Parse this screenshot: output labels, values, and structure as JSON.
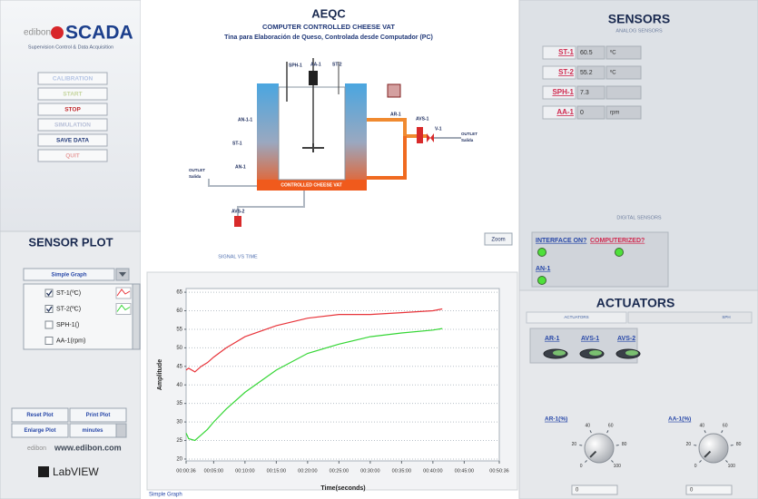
{
  "header": {
    "logo": "edibon",
    "product": "SCADA",
    "tagline": "Supervision Control & Data Acquisition"
  },
  "controls": {
    "buttons": [
      {
        "label": "CALIBRATION",
        "color": "#b4c4e4"
      },
      {
        "label": "START",
        "color": "#c4d49c"
      },
      {
        "label": "STOP",
        "color": "#c0282c"
      },
      {
        "label": "SIMULATION",
        "color": "#b8c0d8"
      },
      {
        "label": "SAVE DATA",
        "color": "#203878"
      },
      {
        "label": "QUIT",
        "color": "#e8a4a4"
      }
    ]
  },
  "process": {
    "code": "AEQC",
    "title": "COMPUTER CONTROLLED CHEESE VAT",
    "subtitle": "Tina para Elaboración de  Queso, Controlada desde Computador (PC)",
    "labels": {
      "sph": "SPH-1",
      "aa": "AA-1",
      "st2": "ST-2",
      "an11": "AN-1-1",
      "st1": "ST-1",
      "an1": "AN-1",
      "ar": "AR-1",
      "avs1": "AVS-1",
      "v1": "V-1",
      "outlet": "OUTLET",
      "outlet_es": "Salida",
      "avs2": "AVS-2",
      "vat": "CONTROLLED CHEESE VAT"
    },
    "zoom": "Zoom"
  },
  "sensors": {
    "title": "SENSORS",
    "analog_title": "ANALOG SENSORS",
    "analog": [
      {
        "tag": "ST-1",
        "value": 60.5,
        "unit": "ºC"
      },
      {
        "tag": "ST-2",
        "value": 55.2,
        "unit": "ºC"
      },
      {
        "tag": "SPH-1",
        "value": 7.3
      },
      {
        "tag": "AA-1",
        "value": 0,
        "unit": "rpm"
      }
    ],
    "digital_title": "DIGITAL SENSORS",
    "digital": [
      {
        "tag": "INTERFACE ON?",
        "on": true
      },
      {
        "tag": "COMPUTERIZED?",
        "on": true
      },
      {
        "tag": "AN-1",
        "on": true
      }
    ]
  },
  "actuators": {
    "title": "ACTUATORS",
    "tabs": [
      "ACTUATORS",
      "SPH"
    ],
    "toggles": [
      "AR-1",
      "AVS-1",
      "AVS-2"
    ],
    "knob_scale": [
      0,
      20,
      40,
      60,
      80,
      100
    ],
    "knobs": [
      {
        "label": "AR-1(%)",
        "value": 0
      },
      {
        "label": "AA-1(%)",
        "value": 0
      }
    ]
  },
  "sensor_plot": {
    "title": "SENSOR PLOT",
    "mode": "Simple Graph",
    "buttons": [
      "Reset Plot",
      "Print Plot",
      "Enlarge Plot"
    ],
    "time_unit": "minutes",
    "website": "www.edibon.com",
    "software": "LabVIEW"
  },
  "chart_data": {
    "type": "line",
    "title": "SIGNAL VS TIME",
    "xlabel": "Time(seconds)",
    "ylabel": "Amplitude",
    "x": [
      36,
      60,
      120,
      180,
      240,
      300,
      420,
      600,
      900,
      1200,
      1500,
      1800,
      2100,
      2400,
      2490
    ],
    "series": [
      {
        "name": "ST-1(ºC)",
        "checked": true,
        "color": "#e8343a",
        "values": [
          44,
          44.5,
          43.5,
          45,
          46,
          47.5,
          50,
          53,
          56,
          58,
          59,
          59,
          59.5,
          60,
          60.5
        ]
      },
      {
        "name": "ST-2(ºC)",
        "checked": true,
        "color": "#35d635",
        "values": [
          27,
          25.5,
          25,
          26.5,
          28,
          30,
          33.5,
          38,
          44,
          48.5,
          51,
          53,
          54,
          54.8,
          55.2
        ]
      },
      {
        "name": "SPH-1()",
        "checked": false
      },
      {
        "name": "AA-1(rpm)",
        "checked": false
      }
    ],
    "xlim": [
      36,
      3036
    ],
    "ylim": [
      19.5,
      66
    ],
    "yticks": [
      20,
      25,
      30,
      35,
      40,
      45,
      50,
      55,
      60,
      65
    ],
    "xticks": [
      {
        "value": 36,
        "label": "00:00:36"
      },
      {
        "value": 300,
        "label": "00:05:00"
      },
      {
        "value": 600,
        "label": "00:10:00"
      },
      {
        "value": 900,
        "label": "00:15:00"
      },
      {
        "value": 1200,
        "label": "00:20:00"
      },
      {
        "value": 1500,
        "label": "00:25:00"
      },
      {
        "value": 1800,
        "label": "00:30:00"
      },
      {
        "value": 2100,
        "label": "00:35:00"
      },
      {
        "value": 2400,
        "label": "00:40:00"
      },
      {
        "value": 2700,
        "label": "00:45:00"
      },
      {
        "value": 3036,
        "label": "00:50:36"
      }
    ],
    "grid": true
  }
}
